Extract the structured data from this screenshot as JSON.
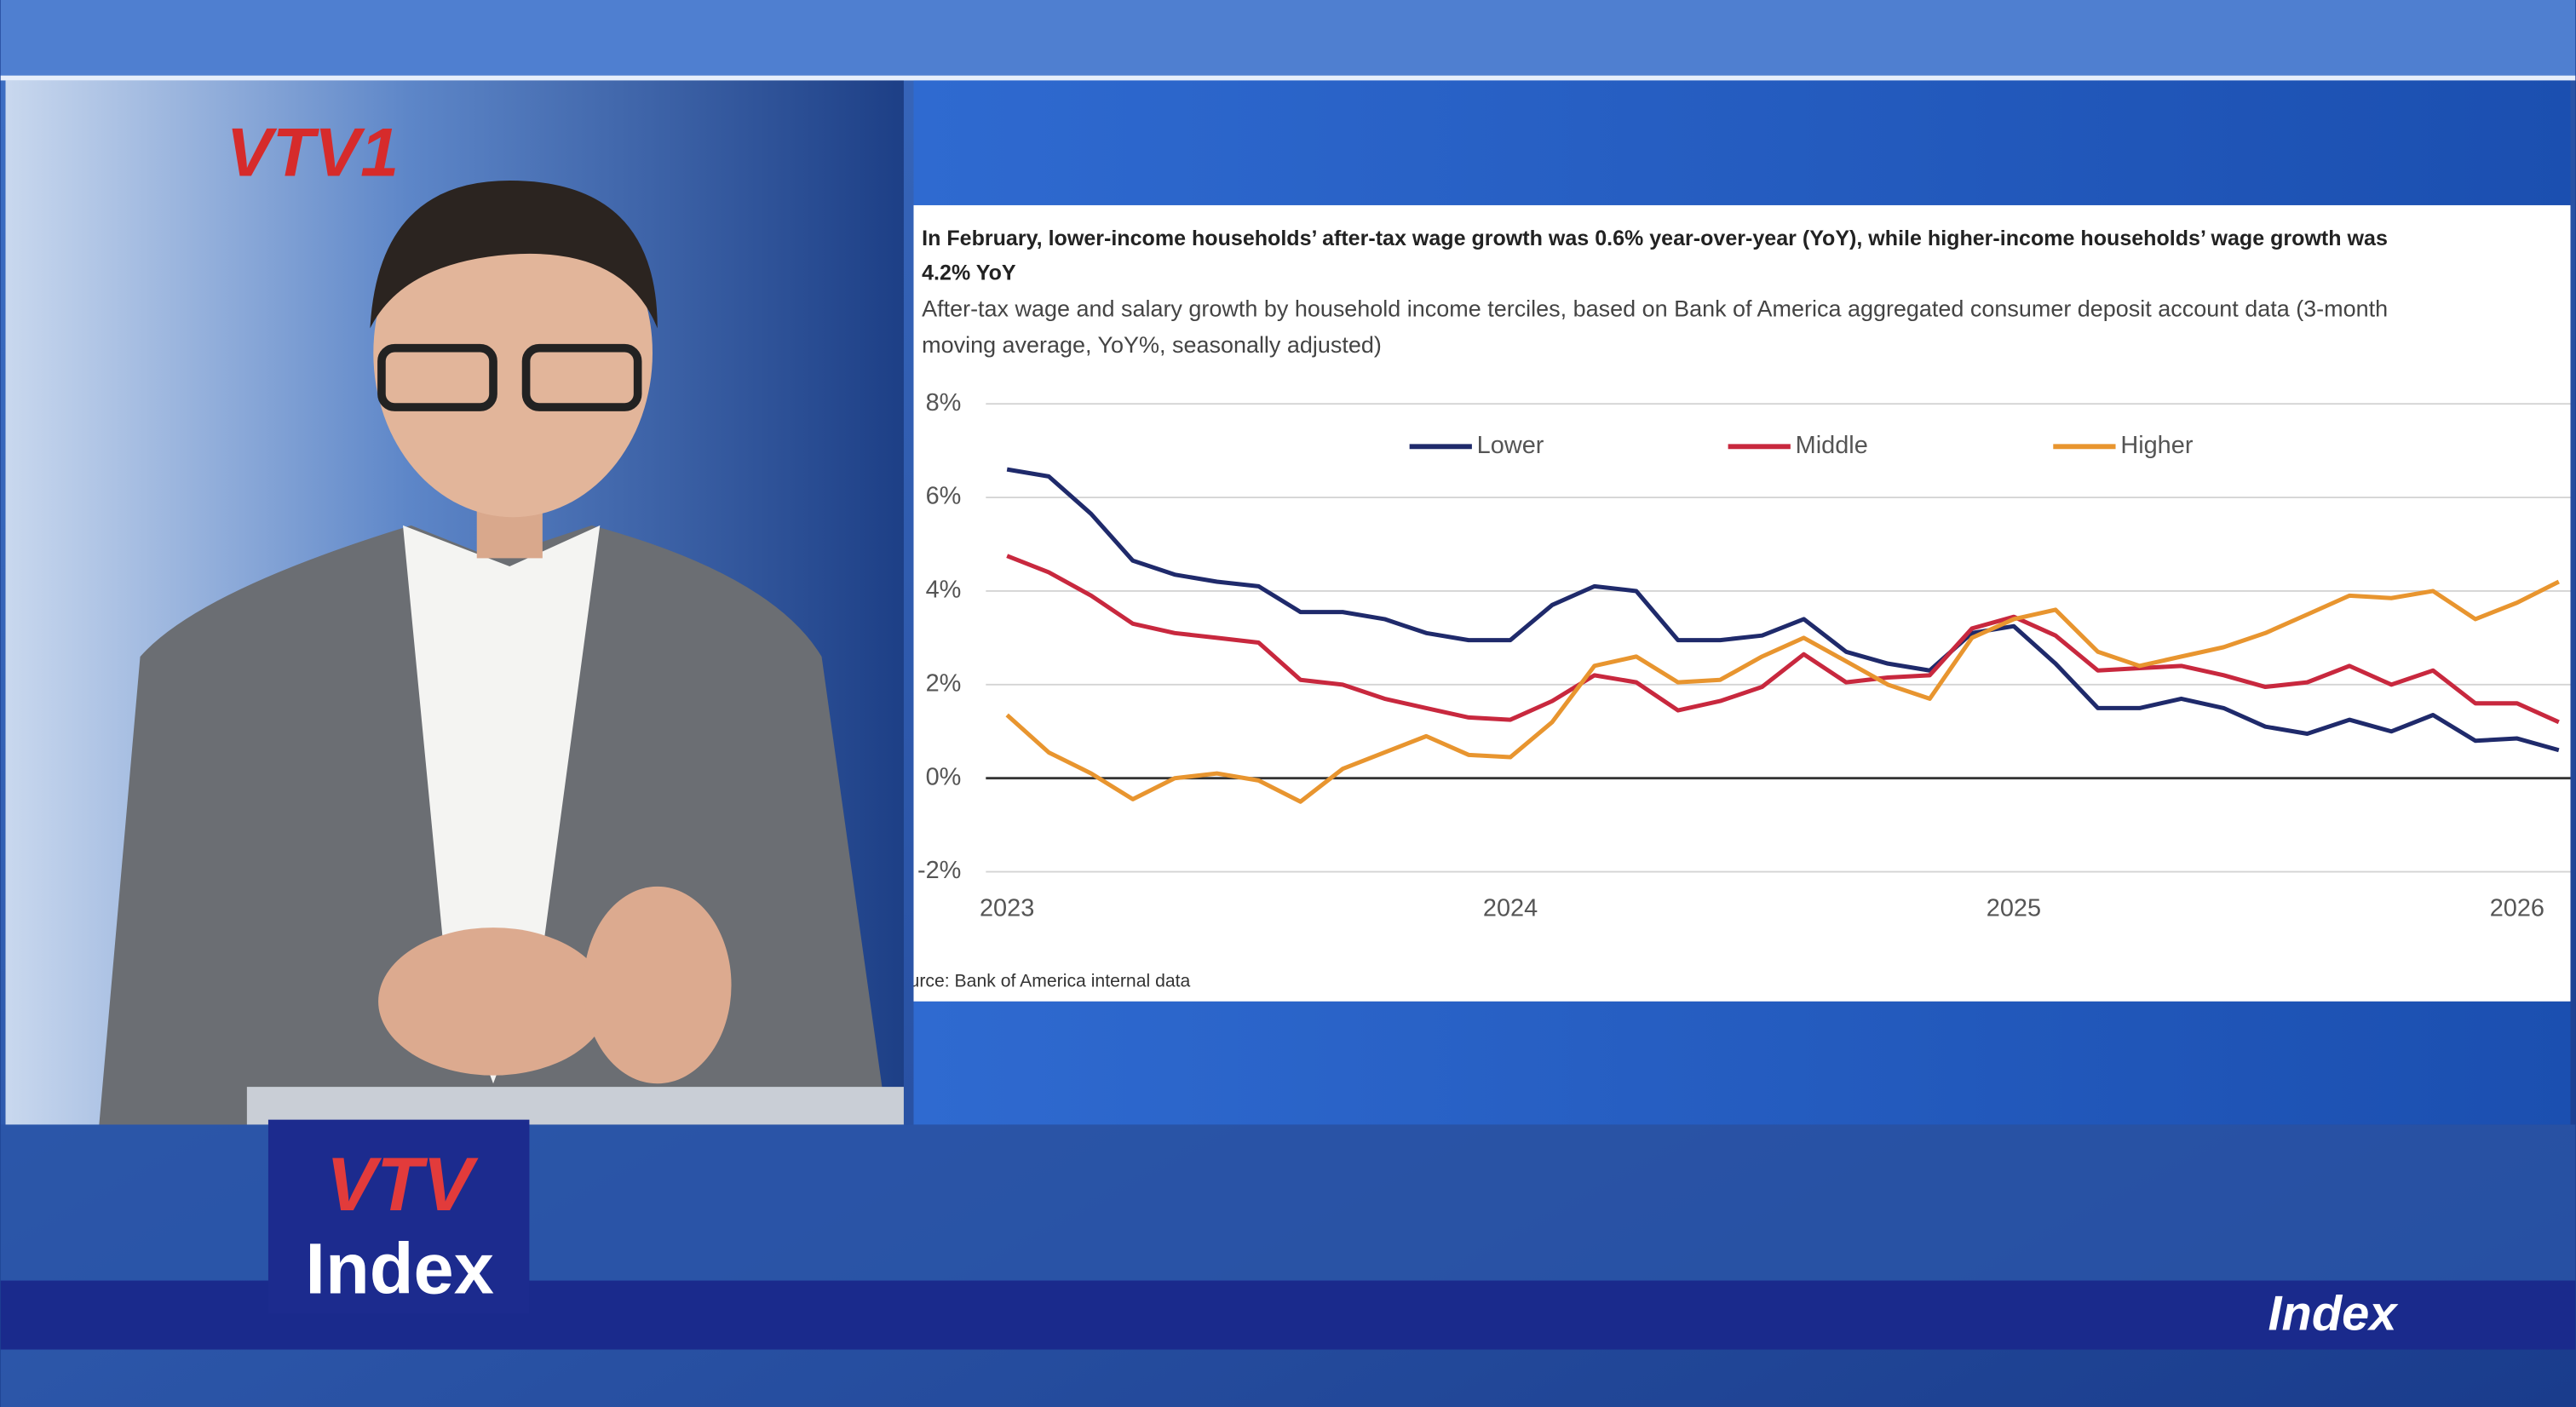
{
  "broadcast": {
    "channel_logo": "VTV1",
    "show_logo": [
      "VTV",
      "Index"
    ],
    "banner": "Index"
  },
  "chart_data": {
    "type": "line",
    "title": [
      "In February, lower-income households’ after-tax wage growth was 0.6% year-over-year (YoY), while higher-income households’ wage growth was",
      "4.2% YoY"
    ],
    "subtitle": [
      "After-tax wage and salary growth by household income terciles, based on Bank of America aggregated consumer deposit account data (3-month",
      "moving average, YoY%, seasonally adjusted)"
    ],
    "source": "Source: Bank of America internal data",
    "x": [
      2023.0,
      2023.083,
      2023.167,
      2023.25,
      2023.333,
      2023.417,
      2023.5,
      2023.583,
      2023.667,
      2023.75,
      2023.833,
      2023.917,
      2024.0,
      2024.083,
      2024.167,
      2024.25,
      2024.333,
      2024.417,
      2024.5,
      2024.583,
      2024.667,
      2024.75,
      2024.833,
      2024.917,
      2025.0,
      2025.083,
      2025.167,
      2025.25,
      2025.333,
      2025.417,
      2025.5,
      2025.583,
      2025.667,
      2025.75,
      2025.833,
      2025.917,
      2026.0,
      2026.083
    ],
    "xlim": [
      2022.958,
      2026.106
    ],
    "xticks": [
      2023,
      2024,
      2025,
      2026
    ],
    "ylim": [
      -2,
      8
    ],
    "yticks": [
      {
        "value": -2,
        "label": "-2%"
      },
      {
        "value": 0,
        "label": "0%"
      },
      {
        "value": 2,
        "label": "2%"
      },
      {
        "value": 4,
        "label": "4%"
      },
      {
        "value": 6,
        "label": "6%"
      },
      {
        "value": 8,
        "label": "8%"
      }
    ],
    "grid": true,
    "legend": "top",
    "series": [
      {
        "name": "Lower",
        "color": "#1f2a6b",
        "values": [
          6.6,
          6.45,
          5.65,
          4.65,
          4.35,
          4.2,
          4.1,
          3.55,
          3.55,
          3.4,
          3.1,
          2.95,
          2.95,
          3.7,
          4.1,
          4.0,
          2.95,
          2.95,
          3.05,
          3.4,
          2.7,
          2.45,
          2.3,
          3.1,
          3.25,
          2.45,
          1.5,
          1.5,
          1.7,
          1.5,
          1.1,
          0.95,
          1.25,
          1.0,
          1.35,
          0.8,
          0.85,
          0.6
        ]
      },
      {
        "name": "Middle",
        "color": "#c8283e",
        "values": [
          4.75,
          4.4,
          3.9,
          3.3,
          3.1,
          3.0,
          2.9,
          2.1,
          2.0,
          1.7,
          1.5,
          1.3,
          1.25,
          1.65,
          2.2,
          2.05,
          1.45,
          1.65,
          1.95,
          2.65,
          2.05,
          2.15,
          2.2,
          3.2,
          3.45,
          3.05,
          2.3,
          2.35,
          2.4,
          2.2,
          1.95,
          2.05,
          2.4,
          2.0,
          2.3,
          1.6,
          1.6,
          1.2
        ]
      },
      {
        "name": "Higher",
        "color": "#e8952f",
        "values": [
          1.35,
          0.55,
          0.1,
          -0.45,
          0.0,
          0.1,
          -0.05,
          -0.5,
          0.2,
          0.55,
          0.9,
          0.5,
          0.45,
          1.2,
          2.4,
          2.6,
          2.05,
          2.1,
          2.6,
          3.0,
          2.5,
          2.0,
          1.7,
          3.0,
          3.4,
          3.6,
          2.7,
          2.4,
          2.6,
          2.8,
          3.1,
          3.5,
          3.9,
          3.85,
          4.0,
          3.4,
          3.75,
          4.2
        ]
      }
    ]
  }
}
